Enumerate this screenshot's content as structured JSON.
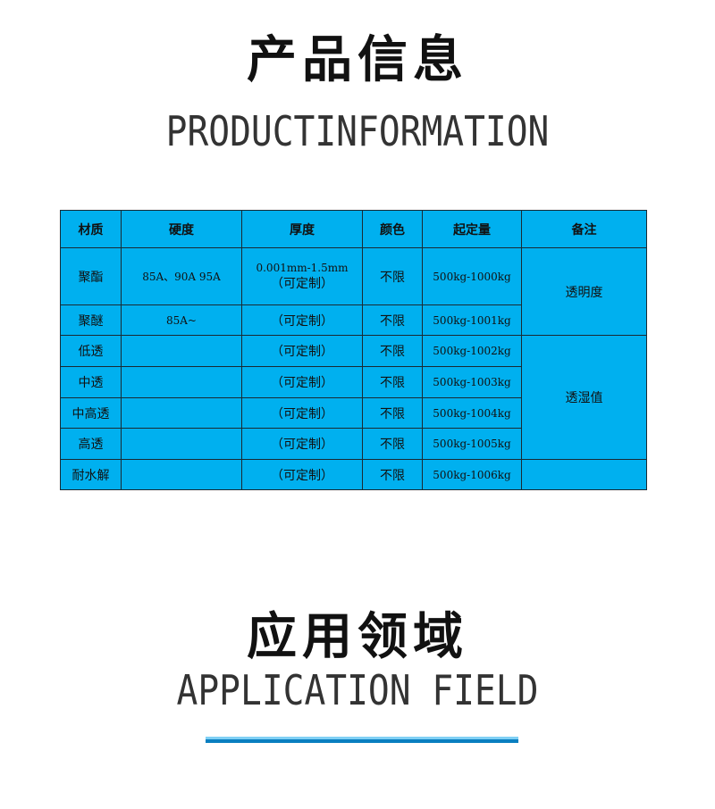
{
  "section1": {
    "title": "产品信息",
    "subtitle": "PRODUCTINFORMATION"
  },
  "table": {
    "headers": [
      "材质",
      "硬度",
      "厚度",
      "颜色",
      "起定量",
      "备注"
    ],
    "rows": [
      {
        "material": "聚酯",
        "hardness": "85A、90A 95A",
        "thickness": "0.001mm-1.5mm",
        "thickness2": "（可定制）",
        "color": "不限",
        "moq": "500kg-1000kg"
      },
      {
        "material": "聚醚",
        "hardness": "85A~",
        "thickness": "（可定制）",
        "color": "不限",
        "moq": "500kg-1001kg"
      },
      {
        "material": "低透",
        "hardness": "",
        "thickness": "（可定制）",
        "color": "不限",
        "moq": "500kg-1002kg"
      },
      {
        "material": "中透",
        "hardness": "",
        "thickness": "（可定制）",
        "color": "不限",
        "moq": "500kg-1003kg"
      },
      {
        "material": "中高透",
        "hardness": "",
        "thickness": "（可定制）",
        "color": "不限",
        "moq": "500kg-1004kg"
      },
      {
        "material": "高透",
        "hardness": "",
        "thickness": "（可定制）",
        "color": "不限",
        "moq": "500kg-1005kg"
      },
      {
        "material": "耐水解",
        "hardness": "",
        "thickness": "（可定制）",
        "color": "不限",
        "moq": "500kg-1006kg"
      }
    ],
    "remarks": [
      "透明度",
      "透湿值",
      ""
    ],
    "background": "#00b0ef"
  },
  "section2": {
    "title": "应用领域",
    "subtitle": "APPLICATION FIELD"
  },
  "accent": "#0a7fc0"
}
